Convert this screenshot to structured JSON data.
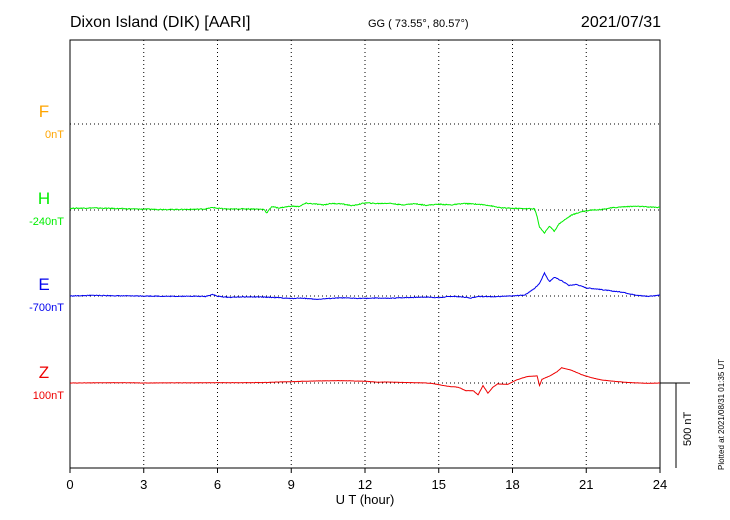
{
  "header": {
    "station": "Dixon Island (DIK)  [AARI]",
    "coords": "GG ( 73.55°,  80.57°)",
    "date": "2021/07/31"
  },
  "footer": {
    "plotted": "Plotted at 2021/08/31 01:35 UT"
  },
  "colors": {
    "F": "#ffa500",
    "H": "#00ee00",
    "E": "#0000ee",
    "Z": "#ee0000",
    "grid": "#000000"
  },
  "chart_data": {
    "type": "line",
    "xlabel": "U T (hour)",
    "xlim": [
      0,
      24
    ],
    "xticks": [
      "0",
      "3",
      "6",
      "9",
      "12",
      "15",
      "18",
      "21",
      "24"
    ],
    "grid": true,
    "scale_bar": "500 nT",
    "series": [
      {
        "name": "F",
        "baseline_label": "0nT",
        "values": []
      },
      {
        "name": "H",
        "baseline_label": "-240nT",
        "x": [
          0,
          1,
          2,
          3,
          4,
          5,
          5.5,
          5.8,
          6,
          6.5,
          7,
          7.5,
          7.9,
          8.0,
          8.2,
          8.5,
          9,
          9.3,
          9.6,
          10,
          10.3,
          10.6,
          11,
          11.5,
          12,
          12.5,
          13,
          13.5,
          14,
          14.5,
          15,
          15.5,
          16,
          16.5,
          17,
          17.5,
          18,
          18.5,
          18.9,
          19.0,
          19.1,
          19.3,
          19.5,
          19.7,
          19.9,
          20.1,
          20.4,
          20.8,
          21.2,
          21.6,
          22,
          22.5,
          23,
          23.5,
          24
        ],
        "values": [
          10,
          12,
          8,
          5,
          3,
          4,
          6,
          15,
          10,
          5,
          7,
          6,
          4,
          -18,
          20,
          12,
          23,
          20,
          40,
          35,
          30,
          38,
          37,
          25,
          42,
          38,
          40,
          30,
          37,
          28,
          34,
          30,
          38,
          35,
          28,
          13,
          10,
          8,
          7,
          -40,
          -100,
          -135,
          -95,
          -125,
          -80,
          -60,
          -30,
          -10,
          0,
          3,
          12,
          19,
          22,
          18,
          15
        ]
      },
      {
        "name": "E",
        "baseline_label": "-700nT",
        "x": [
          0,
          1,
          2,
          3,
          4,
          5,
          5.5,
          5.8,
          6,
          6.5,
          7,
          7.5,
          8,
          8.5,
          9,
          9.3,
          9.6,
          10,
          10.5,
          11,
          11.5,
          12,
          12.5,
          13,
          13.5,
          14,
          14.5,
          15,
          15.5,
          16,
          16.3,
          16.6,
          17,
          17.5,
          18,
          18.5,
          18.9,
          19.0,
          19.1,
          19.3,
          19.5,
          19.7,
          20.0,
          20.3,
          20.6,
          21,
          21.5,
          22,
          22.5,
          23,
          23.5,
          24
        ],
        "values": [
          0,
          4,
          1,
          0,
          -2,
          -1,
          -3,
          10,
          -2,
          -8,
          -5,
          -6,
          -7,
          -10,
          -15,
          -12,
          -14,
          -20,
          -15,
          -11,
          -13,
          -14,
          -12,
          -14,
          -10,
          -8,
          -6,
          -10,
          -2,
          -6,
          -12,
          -2,
          -4,
          -3,
          0,
          6,
          45,
          60,
          75,
          135,
          85,
          110,
          90,
          62,
          68,
          48,
          40,
          30,
          22,
          5,
          -2,
          5
        ]
      },
      {
        "name": "Z",
        "baseline_label": "100nT",
        "x": [
          0,
          1,
          2,
          3,
          4,
          5,
          6,
          7,
          8,
          8.5,
          9,
          9.5,
          10,
          11,
          12,
          12.5,
          13,
          13.5,
          14,
          14.5,
          14.8,
          15,
          15.4,
          15.8,
          16.1,
          16.4,
          16.6,
          16.8,
          17,
          17.2,
          17.4,
          17.8,
          18.2,
          18.6,
          19.0,
          19.1,
          19.2,
          19.5,
          19.8,
          20.0,
          20.4,
          20.8,
          21.2,
          21.6,
          22,
          22.5,
          23,
          23.5,
          24
        ],
        "values": [
          0,
          1,
          2,
          0,
          1,
          1,
          2,
          2,
          3,
          6,
          8,
          10,
          12,
          14,
          10,
          5,
          6,
          3,
          2,
          0,
          -4,
          -10,
          -20,
          -25,
          -45,
          -45,
          -70,
          -15,
          -60,
          -25,
          -5,
          -8,
          20,
          38,
          42,
          -15,
          22,
          40,
          65,
          90,
          75,
          50,
          32,
          18,
          12,
          5,
          1,
          -2,
          0
        ]
      }
    ]
  }
}
